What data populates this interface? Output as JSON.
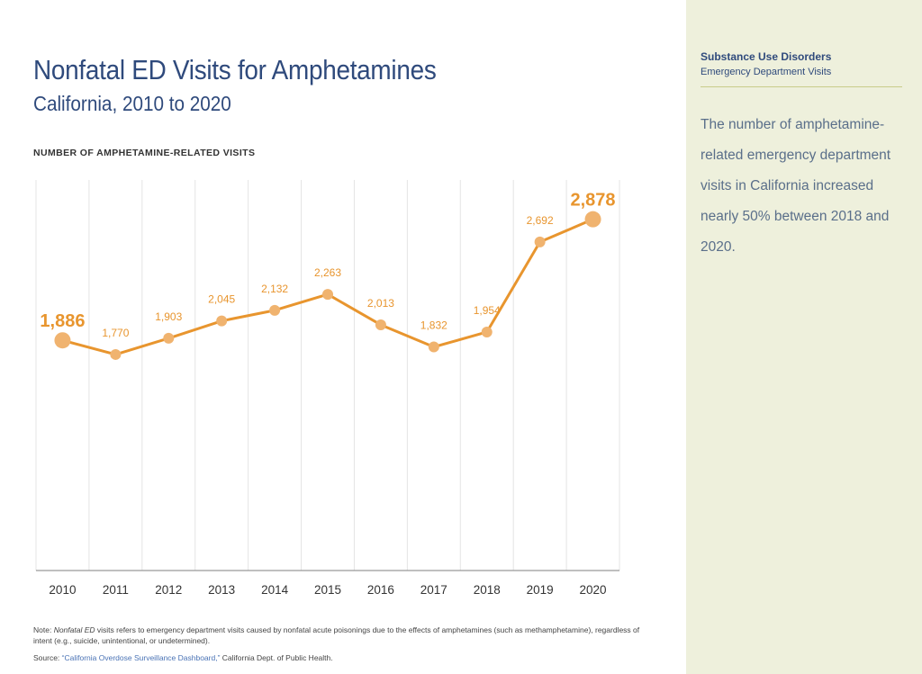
{
  "header": {
    "title": "Nonfatal ED Visits for Amphetamines",
    "subtitle": "California, 2010 to 2020"
  },
  "sidebar": {
    "section_title": "Substance Use Disorders",
    "section_subtitle": "Emergency Department Visits",
    "summary": "The number of amphetamine-related emergency department visits in California increased nearly 50% between 2018 and 2020."
  },
  "notes": {
    "note_prefix": "Note: ",
    "note_term": "Nonfatal ED",
    "note_text": " visits refers to emergency department visits caused by nonfatal acute poisonings due to the effects of amphetamines (such as methamphetamine), regardless of intent (e.g., suicide, unintentional, or undetermined).",
    "source_prefix": "Source: ",
    "source_link": "“California Overdose Surveillance Dashboard,”",
    "source_suffix": " California Dept. of Public Health."
  },
  "colors": {
    "line": "#e8952e",
    "point": "#f0b36f",
    "label": "#e8952e",
    "grid": "#e4e4e4",
    "axis": "#999999",
    "tick_text": "#333333"
  },
  "chart_data": {
    "type": "line",
    "ylabel": "NUMBER OF AMPHETAMINE-RELATED VISITS",
    "xlabel": "",
    "categories": [
      "2010",
      "2011",
      "2012",
      "2013",
      "2014",
      "2015",
      "2016",
      "2017",
      "2018",
      "2019",
      "2020"
    ],
    "values": [
      1886,
      1770,
      1903,
      2045,
      2132,
      2263,
      2013,
      1832,
      1954,
      2692,
      2878
    ],
    "value_labels": [
      "1,886",
      "1,770",
      "1,903",
      "2,045",
      "2,132",
      "2,263",
      "2,013",
      "1,832",
      "1,954",
      "2,692",
      "2,878"
    ],
    "highlighted_points": [
      0,
      10
    ],
    "ylim": [
      0,
      3200
    ],
    "grid": "vertical",
    "y_axis_ticks": false,
    "legend": "none"
  }
}
